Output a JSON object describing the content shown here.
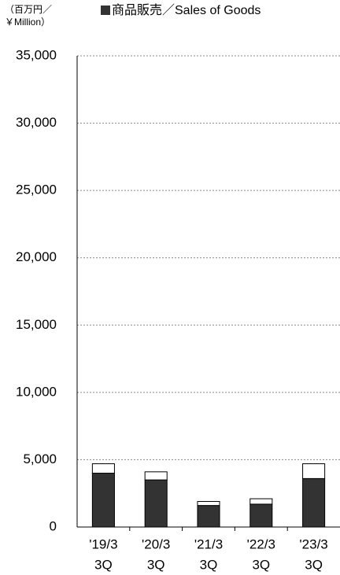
{
  "chart_data": {
    "type": "bar",
    "stacked": true,
    "y_label": [
      "（百万円／",
      "￥Million）"
    ],
    "categories": [
      [
        "'19/3",
        "3Q"
      ],
      [
        "'20/3",
        "3Q"
      ],
      [
        "'21/3",
        "3Q"
      ],
      [
        "'22/3",
        "3Q"
      ],
      [
        "'23/3",
        "3Q"
      ]
    ],
    "series": [
      {
        "name": "商品販売／Sales of Goods",
        "color": "#333333",
        "values": [
          4000,
          3500,
          1600,
          1700,
          3600
        ]
      },
      {
        "color": "#ffffff",
        "values": [
          700,
          600,
          300,
          400,
          1100
        ]
      }
    ],
    "ylim": [
      0,
      35000
    ],
    "yticks": [
      0,
      {
        "value": 5000,
        "label": "5,000"
      },
      {
        "value": 10000,
        "label": "10,000"
      },
      {
        "value": 15000,
        "label": "15,000"
      },
      {
        "value": 20000,
        "label": "20,000"
      },
      {
        "value": 25000,
        "label": "25,000"
      },
      {
        "value": 30000,
        "label": "30,000"
      },
      {
        "value": 35000,
        "label": "35,000"
      }
    ],
    "grid": true
  }
}
